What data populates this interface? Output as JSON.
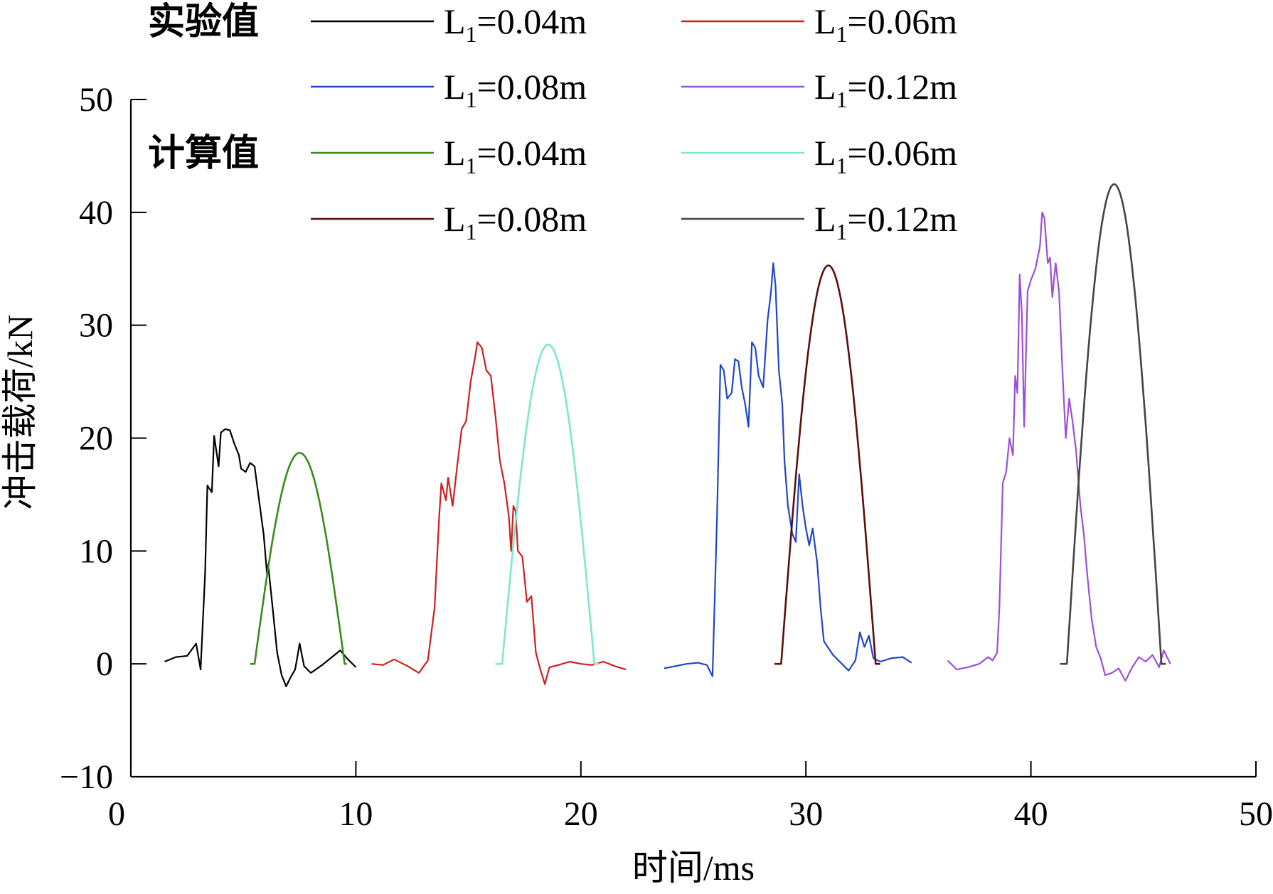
{
  "chart_data": {
    "type": "line",
    "title": "",
    "xlabel": "时间/ms",
    "ylabel": "冲击载荷/kN",
    "xlim": [
      0,
      50
    ],
    "ylim": [
      -10,
      50
    ],
    "xticks": [
      0,
      10,
      20,
      30,
      40,
      50
    ],
    "yticks": [
      -10,
      0,
      10,
      20,
      30,
      40,
      50
    ],
    "grid": false,
    "legend": {
      "placement": "top",
      "groups": [
        {
          "label": "实验值",
          "series_indices": [
            0,
            1,
            2,
            3
          ]
        },
        {
          "label": "计算值",
          "series_indices": [
            4,
            5,
            6,
            7
          ]
        }
      ]
    },
    "series": [
      {
        "group": "实验值",
        "name_prefix": "L",
        "name_sub": "1",
        "name_suffix": "=0.04m",
        "color": "#000000",
        "points": [
          [
            1.5,
            0.2
          ],
          [
            2.0,
            0.6
          ],
          [
            2.5,
            0.7
          ],
          [
            2.9,
            1.8
          ],
          [
            3.1,
            -0.5
          ],
          [
            3.3,
            8
          ],
          [
            3.4,
            15.8
          ],
          [
            3.6,
            15.2
          ],
          [
            3.7,
            20.2
          ],
          [
            3.9,
            17.5
          ],
          [
            4.0,
            20.5
          ],
          [
            4.2,
            20.8
          ],
          [
            4.4,
            20.7
          ],
          [
            4.6,
            19.5
          ],
          [
            4.8,
            18.5
          ],
          [
            4.9,
            17.3
          ],
          [
            5.1,
            17.0
          ],
          [
            5.3,
            17.8
          ],
          [
            5.5,
            17.5
          ],
          [
            5.7,
            14.5
          ],
          [
            5.9,
            11.5
          ],
          [
            6.05,
            8.0
          ],
          [
            6.1,
            8.8
          ],
          [
            6.3,
            5.0
          ],
          [
            6.5,
            1.0
          ],
          [
            6.7,
            -1.0
          ],
          [
            6.9,
            -2.0
          ],
          [
            7.1,
            -1.2
          ],
          [
            7.3,
            -0.5
          ],
          [
            7.4,
            0.6
          ],
          [
            7.5,
            1.8
          ],
          [
            7.7,
            -0.2
          ],
          [
            8.0,
            -0.8
          ],
          [
            8.5,
            -0.1
          ],
          [
            9.0,
            0.7
          ],
          [
            9.3,
            1.2
          ],
          [
            9.6,
            0.5
          ],
          [
            10.0,
            -0.3
          ]
        ]
      },
      {
        "group": "实验值",
        "name_prefix": "L",
        "name_sub": "1",
        "name_suffix": "=0.06m",
        "color": "#cc1f1f",
        "points": [
          [
            10.7,
            0
          ],
          [
            11.2,
            -0.1
          ],
          [
            11.7,
            0.4
          ],
          [
            12.3,
            -0.2
          ],
          [
            12.8,
            -0.8
          ],
          [
            13.2,
            0.3
          ],
          [
            13.5,
            5.0
          ],
          [
            13.7,
            13.0
          ],
          [
            13.8,
            16.0
          ],
          [
            14.0,
            14.5
          ],
          [
            14.1,
            16.5
          ],
          [
            14.3,
            14.0
          ],
          [
            14.5,
            17.5
          ],
          [
            14.7,
            20.8
          ],
          [
            14.9,
            21.5
          ],
          [
            15.1,
            25.0
          ],
          [
            15.3,
            27.2
          ],
          [
            15.4,
            28.5
          ],
          [
            15.6,
            28.0
          ],
          [
            15.8,
            26.0
          ],
          [
            16.0,
            25.5
          ],
          [
            16.2,
            22.0
          ],
          [
            16.4,
            18.0
          ],
          [
            16.6,
            16.0
          ],
          [
            16.8,
            13.0
          ],
          [
            16.9,
            10.0
          ],
          [
            17.0,
            14.0
          ],
          [
            17.1,
            13.5
          ],
          [
            17.2,
            10.0
          ],
          [
            17.4,
            9.5
          ],
          [
            17.6,
            5.5
          ],
          [
            17.8,
            6.0
          ],
          [
            18.0,
            1.0
          ],
          [
            18.2,
            -0.5
          ],
          [
            18.4,
            -1.8
          ],
          [
            18.6,
            -0.3
          ],
          [
            19.0,
            -0.1
          ],
          [
            19.5,
            0.2
          ],
          [
            20.0,
            0
          ],
          [
            20.5,
            -0.1
          ],
          [
            21.0,
            0.2
          ],
          [
            21.5,
            -0.2
          ],
          [
            22.0,
            -0.5
          ]
        ]
      },
      {
        "group": "实验值",
        "name_prefix": "L",
        "name_sub": "1",
        "name_suffix": "=0.08m",
        "color": "#1f46c8",
        "points": [
          [
            23.7,
            -0.4
          ],
          [
            24.2,
            -0.2
          ],
          [
            24.7,
            0
          ],
          [
            25.2,
            0.1
          ],
          [
            25.6,
            -0.1
          ],
          [
            25.85,
            -1.1
          ],
          [
            26.05,
            13.0
          ],
          [
            26.2,
            26.5
          ],
          [
            26.35,
            26.0
          ],
          [
            26.5,
            23.5
          ],
          [
            26.7,
            24.0
          ],
          [
            26.85,
            27.0
          ],
          [
            27.0,
            26.8
          ],
          [
            27.15,
            24.5
          ],
          [
            27.3,
            23.0
          ],
          [
            27.45,
            21.0
          ],
          [
            27.6,
            28.5
          ],
          [
            27.75,
            28.0
          ],
          [
            27.9,
            25.5
          ],
          [
            28.1,
            24.5
          ],
          [
            28.3,
            30.5
          ],
          [
            28.45,
            33.0
          ],
          [
            28.55,
            35.5
          ],
          [
            28.65,
            33.5
          ],
          [
            28.8,
            26.0
          ],
          [
            28.95,
            23.0
          ],
          [
            29.05,
            18.0
          ],
          [
            29.2,
            14.0
          ],
          [
            29.4,
            11.5
          ],
          [
            29.55,
            10.8
          ],
          [
            29.7,
            16.8
          ],
          [
            29.85,
            14.0
          ],
          [
            30.0,
            12.0
          ],
          [
            30.15,
            10.5
          ],
          [
            30.3,
            12.0
          ],
          [
            30.5,
            9.0
          ],
          [
            30.65,
            5.0
          ],
          [
            30.8,
            2.0
          ],
          [
            31.2,
            0.8
          ],
          [
            31.6,
            0
          ],
          [
            31.9,
            -0.6
          ],
          [
            32.2,
            0.3
          ],
          [
            32.4,
            2.8
          ],
          [
            32.6,
            1.5
          ],
          [
            32.8,
            2.5
          ],
          [
            33.0,
            0.5
          ],
          [
            33.3,
            0.2
          ],
          [
            33.8,
            0.5
          ],
          [
            34.3,
            0.6
          ],
          [
            34.7,
            0.1
          ]
        ]
      },
      {
        "group": "实验值",
        "name_prefix": "L",
        "name_sub": "1",
        "name_suffix": "=0.12m",
        "color": "#9d4ed8",
        "points": [
          [
            36.3,
            0.3
          ],
          [
            36.7,
            -0.5
          ],
          [
            37.2,
            -0.3
          ],
          [
            37.7,
            0
          ],
          [
            38.1,
            0.6
          ],
          [
            38.3,
            0.3
          ],
          [
            38.5,
            1.0
          ],
          [
            38.6,
            5.0
          ],
          [
            38.75,
            16.0
          ],
          [
            38.9,
            17.0
          ],
          [
            39.05,
            20.0
          ],
          [
            39.2,
            18.5
          ],
          [
            39.3,
            25.5
          ],
          [
            39.4,
            24.0
          ],
          [
            39.5,
            34.5
          ],
          [
            39.6,
            31.0
          ],
          [
            39.7,
            21.0
          ],
          [
            39.85,
            33.0
          ],
          [
            40.0,
            34.0
          ],
          [
            40.2,
            35.0
          ],
          [
            40.4,
            37.0
          ],
          [
            40.5,
            40.0
          ],
          [
            40.6,
            39.5
          ],
          [
            40.75,
            35.5
          ],
          [
            40.85,
            36.0
          ],
          [
            40.95,
            32.5
          ],
          [
            41.1,
            35.5
          ],
          [
            41.25,
            33.0
          ],
          [
            41.4,
            26.0
          ],
          [
            41.55,
            20.0
          ],
          [
            41.7,
            23.5
          ],
          [
            41.85,
            21.5
          ],
          [
            42.0,
            19.0
          ],
          [
            42.2,
            14.0
          ],
          [
            42.35,
            11.5
          ],
          [
            42.5,
            8.0
          ],
          [
            42.7,
            4.0
          ],
          [
            42.9,
            1.5
          ],
          [
            43.1,
            0.5
          ],
          [
            43.3,
            -1.0
          ],
          [
            43.6,
            -0.8
          ],
          [
            43.9,
            -0.4
          ],
          [
            44.2,
            -1.5
          ],
          [
            44.5,
            -0.3
          ],
          [
            44.8,
            0.6
          ],
          [
            45.1,
            0.2
          ],
          [
            45.4,
            0.8
          ],
          [
            45.7,
            -0.3
          ],
          [
            45.9,
            1.2
          ],
          [
            46.2,
            0
          ]
        ]
      },
      {
        "group": "计算值",
        "name_prefix": "L",
        "name_sub": "1",
        "name_suffix": "=0.04m",
        "color": "#3a8a1c",
        "sine": {
          "t0": 5.5,
          "t1": 9.5,
          "peak": 18.7
        },
        "flat_before": 5.3,
        "flat_after": 9.6
      },
      {
        "group": "计算值",
        "name_prefix": "L",
        "name_sub": "1",
        "name_suffix": "=0.06m",
        "color": "#7de8cc",
        "sine": {
          "t0": 16.5,
          "t1": 20.6,
          "peak": 28.3
        },
        "flat_before": 16.2,
        "flat_after": 20.8
      },
      {
        "group": "计算值",
        "name_prefix": "L",
        "name_sub": "1",
        "name_suffix": "=0.08m",
        "color": "#5a0f0f",
        "sine": {
          "t0": 28.9,
          "t1": 33.1,
          "peak": 35.3
        },
        "flat_before": 28.6,
        "flat_after": 33.3
      },
      {
        "group": "计算值",
        "name_prefix": "L",
        "name_sub": "1",
        "name_suffix": "=0.12m",
        "color": "#444444",
        "sine": {
          "t0": 41.6,
          "t1": 45.8,
          "peak": 42.5
        },
        "flat_before": 41.3,
        "flat_after": 46.0
      }
    ]
  }
}
